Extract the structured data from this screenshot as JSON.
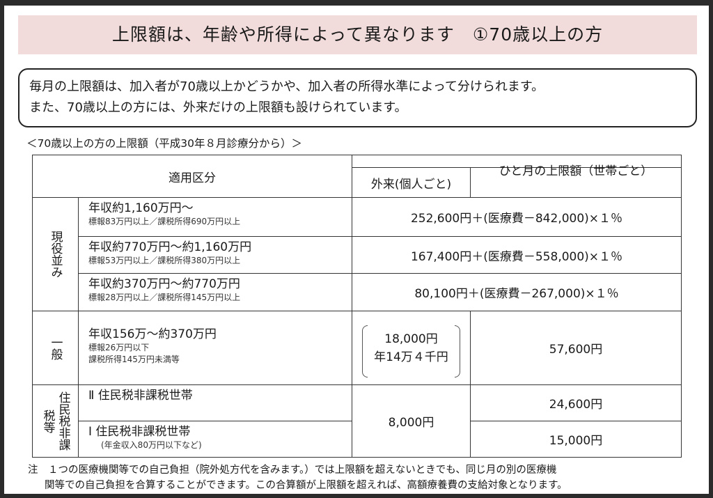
{
  "title": "上限額は、年齢や所得によって異なります　①70歳以上の方",
  "intro": [
    "毎月の上限額は、加入者が70歳以上かどうかや、加入者の所得水準によって分けられます。",
    "また、70歳以上の方には、外来だけの上限額も設けられています。"
  ],
  "caption": "＜70歳以上の方の上限額（平成30年８月診療分から）＞",
  "table": {
    "headers": {
      "category": "適用区分",
      "outpatient": "外来(個人ごと)",
      "monthly": "ひと月の上限額（世帯ごと）"
    },
    "groups": {
      "genekinami": "現役並み",
      "ippan": "一般",
      "hikazei": "住民税非課税等"
    },
    "rows": [
      {
        "main": "年収約1,160万円～",
        "sub": "標報83万円以上／課税所得690万円以上",
        "limit": "252,600円＋(医療費－842,000)×１％"
      },
      {
        "main": "年収約770万円～約1,160万円",
        "sub": "標報53万円以上／課税所得380万円以上",
        "limit": "167,400円＋(医療費－558,000)×１％"
      },
      {
        "main": "年収約370万円～約770万円",
        "sub": "標報28万円以上／課税所得145万円以上",
        "limit": "80,100円＋(医療費－267,000)×１％"
      },
      {
        "main": "年収156万～約370万円",
        "sub": "標報26万円以下",
        "sub2": "課税所得145万円未満等",
        "outpatient": "18,000円",
        "outpatient_note": "年14万４千円",
        "limit": "57,600円"
      },
      {
        "main": "Ⅱ 住民税非課税世帯",
        "limit": "24,600円"
      },
      {
        "main": "Ⅰ 住民税非課税世帯",
        "sub": "(年金収入80万円以下など)",
        "limit": "15,000円"
      }
    ],
    "hikazei_outpatient": "8,000円"
  },
  "note": [
    "注　１つの医療機関等での自己負担（院外処方代を含みます。）では上限額を超えないときでも、同じ月の別の医療機",
    "関等での自己負担を合算することができます。この合算額が上限額を超えれば、高額療養費の支給対象となります。"
  ]
}
